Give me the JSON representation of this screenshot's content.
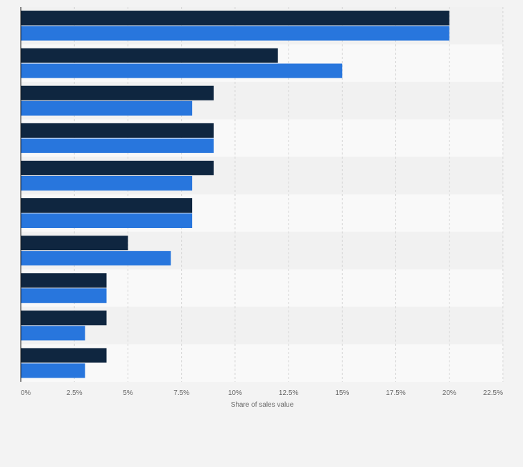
{
  "chart_data": {
    "type": "bar",
    "orientation": "horizontal",
    "categories": [
      "",
      "",
      "",
      "",
      "",
      "",
      "",
      "",
      "",
      ""
    ],
    "series": [
      {
        "color": "#0f2640",
        "values": [
          20,
          12,
          9,
          9,
          9,
          8,
          5,
          4,
          4,
          4
        ]
      },
      {
        "color": "#2876dd",
        "values": [
          20,
          15,
          8,
          9,
          8,
          8,
          7,
          4,
          3,
          3
        ]
      }
    ],
    "xlabel": "Share of sales value",
    "ylabel": "",
    "xlim": [
      0,
      22.5
    ],
    "xticks": [
      "0%",
      "2.5%",
      "5%",
      "7.5%",
      "10%",
      "12.5%",
      "15%",
      "17.5%",
      "20%",
      "22.5%"
    ],
    "grid": true,
    "legend": "none"
  }
}
